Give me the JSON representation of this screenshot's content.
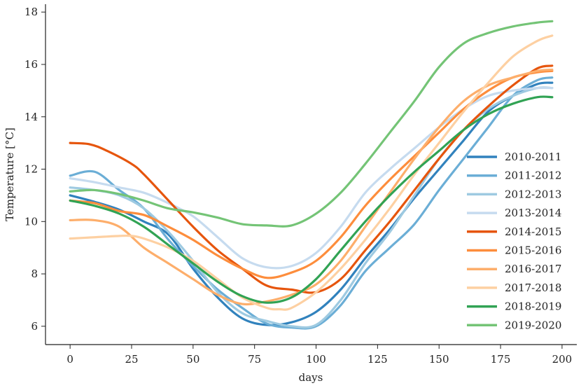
{
  "chart_data": {
    "type": "line",
    "title": "",
    "xlabel": "days",
    "ylabel": "Temperature [°C]",
    "xlim": [
      -10,
      206
    ],
    "ylim": [
      5.3,
      18.3
    ],
    "xticks": [
      0,
      25,
      50,
      75,
      100,
      125,
      150,
      175,
      200
    ],
    "yticks": [
      6,
      8,
      10,
      12,
      14,
      16,
      18
    ],
    "grid": false,
    "legend_position": "right",
    "series": [
      {
        "name": "2010-2011",
        "color": "#3182bd",
        "x": [
          0,
          10,
          20,
          30,
          40,
          50,
          60,
          70,
          80,
          90,
          100,
          110,
          120,
          130,
          140,
          150,
          160,
          170,
          180,
          190,
          196
        ],
        "y": [
          11.0,
          10.75,
          10.45,
          10.0,
          9.5,
          8.2,
          7.1,
          6.3,
          6.05,
          6.15,
          6.55,
          7.4,
          8.6,
          9.7,
          10.9,
          12.0,
          13.1,
          14.2,
          14.8,
          15.25,
          15.3
        ]
      },
      {
        "name": "2011-2012",
        "color": "#6baed6",
        "x": [
          0,
          10,
          20,
          30,
          40,
          50,
          60,
          70,
          80,
          90,
          100,
          110,
          120,
          130,
          140,
          150,
          160,
          170,
          180,
          190,
          196
        ],
        "y": [
          11.75,
          11.9,
          11.2,
          10.5,
          9.3,
          8.3,
          7.4,
          6.7,
          6.1,
          5.95,
          6.0,
          6.8,
          8.1,
          9.0,
          9.9,
          11.2,
          12.4,
          13.6,
          14.8,
          15.4,
          15.5
        ]
      },
      {
        "name": "2012-2013",
        "color": "#9ecae1",
        "x": [
          0,
          10,
          20,
          30,
          40,
          50,
          60,
          70,
          80,
          90,
          100,
          110,
          120,
          130,
          140,
          150,
          160,
          170,
          180,
          190,
          196
        ],
        "y": [
          11.3,
          11.2,
          11.0,
          10.5,
          9.6,
          8.5,
          7.3,
          6.5,
          6.2,
          6.0,
          6.05,
          7.0,
          8.4,
          9.6,
          11.0,
          12.4,
          13.5,
          14.3,
          14.8,
          15.1,
          15.1
        ]
      },
      {
        "name": "2013-2014",
        "color": "#c6dbef",
        "x": [
          0,
          10,
          20,
          30,
          40,
          50,
          60,
          70,
          80,
          90,
          100,
          110,
          120,
          130,
          140,
          150,
          160,
          170,
          180,
          190,
          196
        ],
        "y": [
          11.65,
          11.5,
          11.3,
          11.1,
          10.7,
          10.2,
          9.4,
          8.6,
          8.25,
          8.3,
          8.8,
          9.8,
          11.1,
          12.0,
          12.8,
          13.6,
          14.3,
          14.8,
          15.0,
          15.1,
          15.1
        ]
      },
      {
        "name": "2014-2015",
        "color": "#e6550d",
        "x": [
          0,
          8,
          15,
          25,
          30,
          40,
          50,
          60,
          70,
          80,
          90,
          100,
          110,
          120,
          130,
          140,
          150,
          160,
          170,
          180,
          190,
          196
        ],
        "y": [
          13.0,
          12.95,
          12.7,
          12.2,
          11.8,
          10.8,
          9.8,
          8.9,
          8.2,
          7.55,
          7.4,
          7.3,
          7.8,
          8.9,
          10.0,
          11.2,
          12.4,
          13.5,
          14.4,
          15.2,
          15.85,
          15.95
        ]
      },
      {
        "name": "2015-2016",
        "color": "#fd8d3c",
        "x": [
          0,
          10,
          20,
          30,
          40,
          50,
          60,
          70,
          80,
          90,
          100,
          110,
          120,
          130,
          140,
          150,
          160,
          170,
          180,
          190,
          196
        ],
        "y": [
          10.8,
          10.7,
          10.4,
          10.25,
          9.8,
          9.3,
          8.7,
          8.2,
          7.85,
          8.05,
          8.5,
          9.4,
          10.6,
          11.6,
          12.5,
          13.4,
          14.3,
          15.0,
          15.5,
          15.7,
          15.75
        ]
      },
      {
        "name": "2016-2017",
        "color": "#fdae6b",
        "x": [
          0,
          10,
          20,
          30,
          40,
          50,
          60,
          70,
          80,
          90,
          100,
          110,
          120,
          130,
          140,
          150,
          160,
          170,
          180,
          190,
          196
        ],
        "y": [
          10.05,
          10.05,
          9.8,
          9.0,
          8.4,
          7.8,
          7.2,
          6.85,
          6.95,
          7.2,
          7.6,
          8.5,
          9.8,
          11.1,
          12.4,
          13.6,
          14.6,
          15.2,
          15.5,
          15.75,
          15.8
        ]
      },
      {
        "name": "2017-2018",
        "color": "#fdd0a2",
        "x": [
          0,
          10,
          20,
          25,
          30,
          40,
          50,
          60,
          70,
          80,
          85,
          90,
          100,
          110,
          120,
          130,
          140,
          150,
          160,
          170,
          180,
          190,
          196
        ],
        "y": [
          9.35,
          9.4,
          9.45,
          9.45,
          9.35,
          9.0,
          8.5,
          7.8,
          7.1,
          6.7,
          6.65,
          6.7,
          7.3,
          8.2,
          9.3,
          10.5,
          11.8,
          13.0,
          14.2,
          15.3,
          16.3,
          16.9,
          17.1
        ]
      },
      {
        "name": "2018-2019",
        "color": "#31a354",
        "x": [
          0,
          10,
          20,
          30,
          40,
          50,
          60,
          70,
          80,
          90,
          100,
          110,
          120,
          130,
          140,
          150,
          160,
          170,
          180,
          190,
          196
        ],
        "y": [
          10.8,
          10.6,
          10.3,
          9.8,
          9.1,
          8.4,
          7.7,
          7.15,
          6.9,
          7.1,
          7.8,
          8.9,
          10.0,
          11.0,
          11.9,
          12.7,
          13.5,
          14.1,
          14.5,
          14.75,
          14.75
        ]
      },
      {
        "name": "2019-2020",
        "color": "#74c476",
        "x": [
          0,
          10,
          20,
          30,
          40,
          50,
          60,
          70,
          80,
          90,
          100,
          110,
          120,
          130,
          140,
          150,
          160,
          170,
          180,
          190,
          196
        ],
        "y": [
          11.15,
          11.2,
          11.05,
          10.8,
          10.5,
          10.35,
          10.15,
          9.9,
          9.85,
          9.85,
          10.3,
          11.1,
          12.2,
          13.4,
          14.6,
          15.9,
          16.8,
          17.2,
          17.45,
          17.6,
          17.65
        ]
      }
    ]
  }
}
